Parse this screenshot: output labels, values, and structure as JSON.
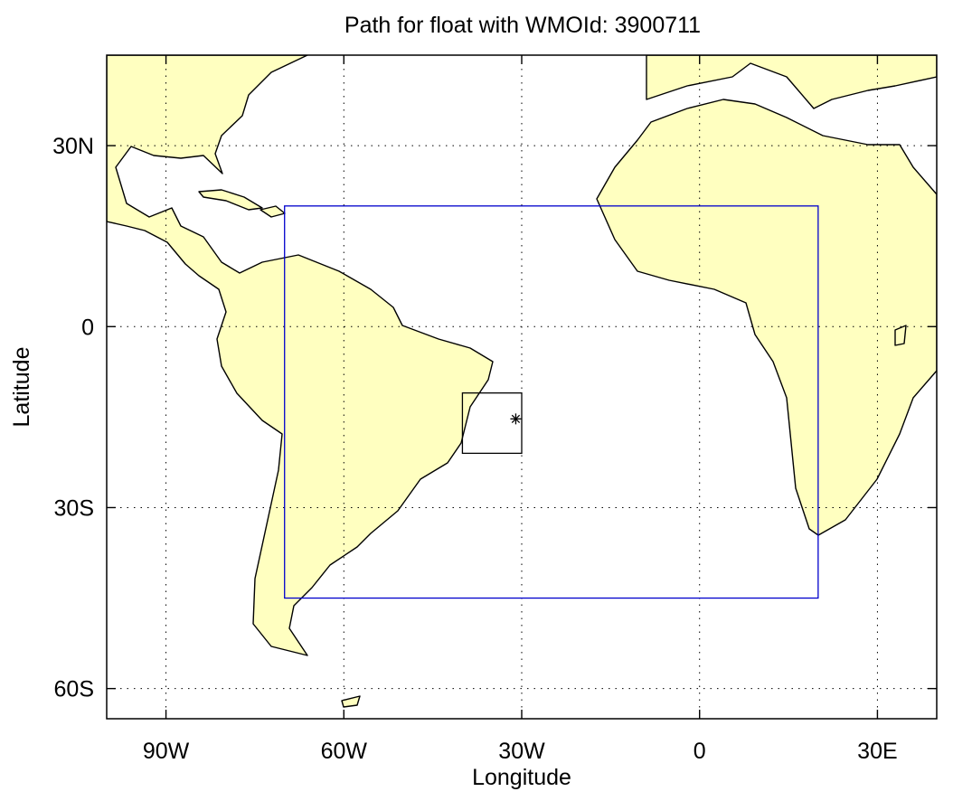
{
  "chart_data": {
    "type": "map",
    "title": "Path for float with WMOId: 3900711",
    "x_label": "Longitude",
    "y_label": "Latitude",
    "xlim": [
      -100,
      40
    ],
    "ylim": [
      -65,
      45
    ],
    "xticks": [
      {
        "value": -90,
        "label": "90W"
      },
      {
        "value": -60,
        "label": "60W"
      },
      {
        "value": -30,
        "label": "30W"
      },
      0,
      {
        "value": 30,
        "label": "30E"
      }
    ],
    "yticks": [
      {
        "value": 30,
        "label": "30N"
      },
      0,
      {
        "value": -30,
        "label": "30S"
      },
      {
        "value": -60,
        "label": "60S"
      }
    ],
    "grid": true,
    "boxes": [
      {
        "lon": [
          -70,
          20
        ],
        "lat": [
          -45,
          20
        ],
        "color": "#0000cc"
      },
      {
        "lon": [
          -40,
          -30
        ],
        "lat": [
          -21,
          -11
        ],
        "color": "#000000"
      }
    ],
    "float_position": {
      "lon": -31,
      "lat": -15.3
    }
  }
}
